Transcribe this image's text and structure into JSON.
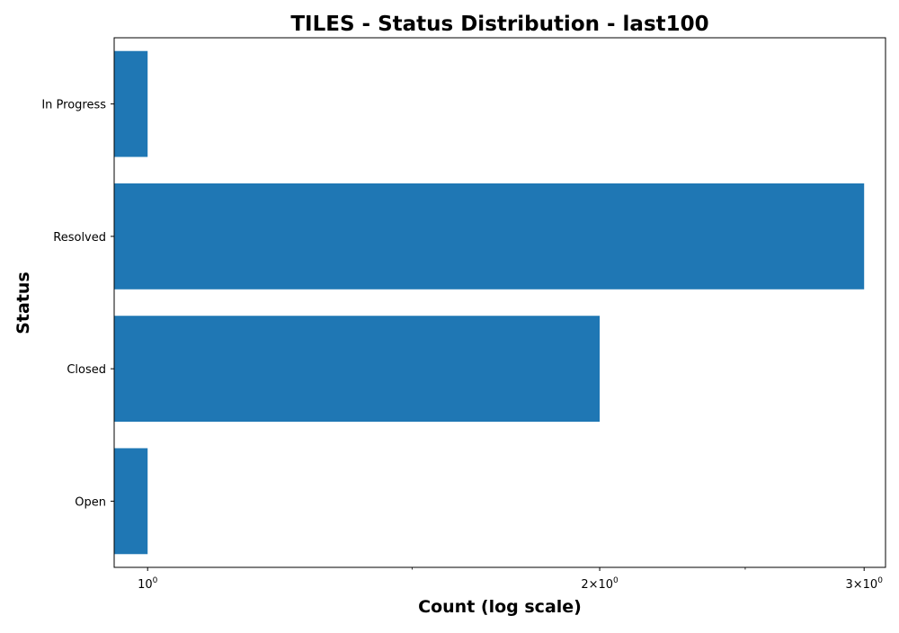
{
  "chart_data": {
    "type": "bar",
    "orientation": "horizontal",
    "title": "TILES - Status Distribution - last100",
    "xlabel": "Count (log scale)",
    "ylabel": "Status",
    "xscale": "log",
    "xlim": [
      0.95,
      3.1
    ],
    "categories": [
      "Open",
      "Closed",
      "Resolved",
      "In Progress"
    ],
    "values": [
      1,
      2,
      3,
      1
    ],
    "x_ticks": [
      {
        "value": 1,
        "base": "10",
        "exp": "0",
        "prefix": ""
      },
      {
        "value": 2,
        "base": "10",
        "exp": "0",
        "prefix": "2×"
      },
      {
        "value": 3,
        "base": "10",
        "exp": "0",
        "prefix": "3×"
      }
    ],
    "bar_color": "#1f77b4",
    "grid": false,
    "legend": "none"
  }
}
